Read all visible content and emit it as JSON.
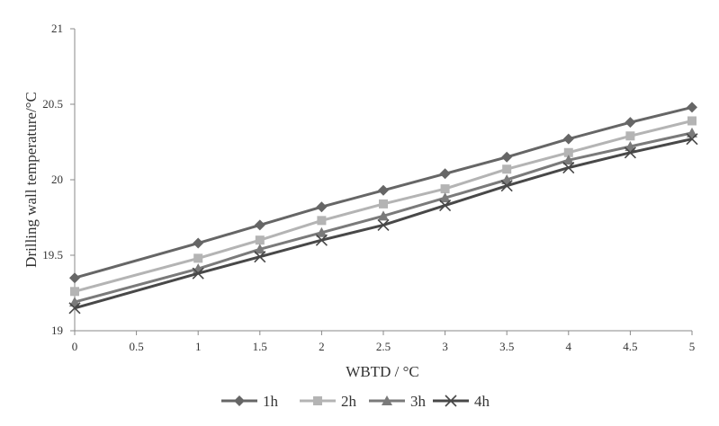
{
  "chart_data": {
    "type": "line",
    "title": "",
    "xlabel": "WBTD / °C",
    "ylabel": "Drilling wall temperature/°C",
    "xlim": [
      0,
      5
    ],
    "ylim": [
      19,
      21
    ],
    "x_ticks": [
      "0",
      "0.5",
      "1",
      "1.5",
      "2",
      "2.5",
      "3",
      "3.5",
      "4",
      "4.5",
      "5"
    ],
    "y_ticks": [
      "19",
      "19.5",
      "20",
      "20.5",
      "21"
    ],
    "grid": false,
    "legend_position": "bottom",
    "x": [
      0,
      1,
      1.5,
      2,
      2.5,
      3,
      3.5,
      4,
      4.5,
      5
    ],
    "series": [
      {
        "name": "1h",
        "marker": "diamond",
        "color": "#666666",
        "values": [
          19.35,
          19.58,
          19.7,
          19.82,
          19.93,
          20.04,
          20.15,
          20.27,
          20.38,
          20.48
        ]
      },
      {
        "name": "2h",
        "marker": "square",
        "color": "#b4b4b4",
        "values": [
          19.26,
          19.48,
          19.6,
          19.73,
          19.84,
          19.94,
          20.07,
          20.18,
          20.29,
          20.39
        ]
      },
      {
        "name": "3h",
        "marker": "triangle",
        "color": "#7a7a7a",
        "values": [
          19.19,
          19.41,
          19.54,
          19.65,
          19.76,
          19.88,
          20.0,
          20.13,
          20.22,
          20.31
        ]
      },
      {
        "name": "4h",
        "marker": "x",
        "color": "#484848",
        "values": [
          19.15,
          19.38,
          19.49,
          19.6,
          19.7,
          19.83,
          19.96,
          20.08,
          20.18,
          20.27
        ]
      }
    ]
  }
}
